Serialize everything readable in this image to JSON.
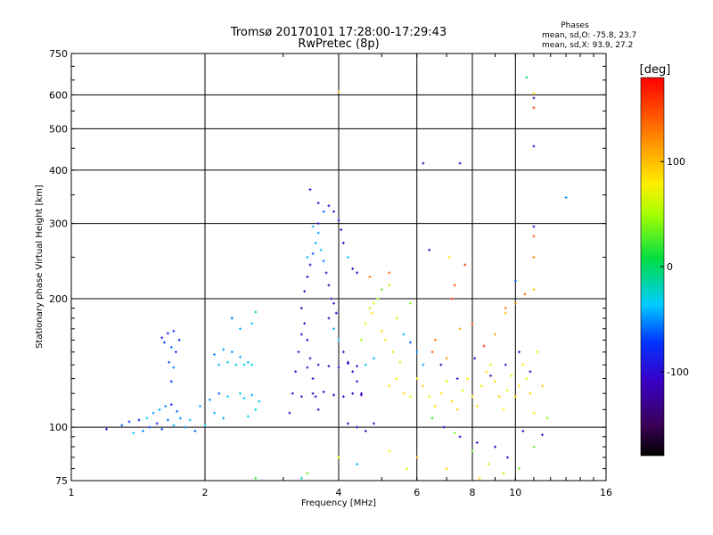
{
  "chart_data": {
    "type": "scatter",
    "title": "Tromsø 20170101 17:28:00-17:29:43",
    "subtitle": "RwPretec (8p)",
    "xlabel": "Frequency [MHz]",
    "ylabel": "Stationary phase Virtual Height [km]",
    "x_scale": "log",
    "y_scale": "log",
    "xlim": [
      1,
      16
    ],
    "ylim": [
      75,
      750
    ],
    "x_ticks": [
      1,
      2,
      4,
      6,
      8,
      10,
      16
    ],
    "x_tick_labels": [
      "1",
      "2",
      "4",
      "6",
      "8",
      "10",
      "16"
    ],
    "y_ticks": [
      75,
      100,
      200,
      300,
      400,
      500,
      600,
      750
    ],
    "y_tick_labels": [
      "75",
      "100",
      "200",
      "300",
      "400",
      "500",
      "600",
      "750"
    ],
    "grid": true,
    "legend": {
      "title": "Phases",
      "lines": [
        "mean, sd,O: -75.8, 23.7",
        "mean, sd,X:  93.9, 27.2"
      ],
      "position": "top-right"
    },
    "colorbar": {
      "label": "[deg]",
      "range": [
        -180,
        180
      ],
      "ticks": [
        100,
        0,
        -100
      ],
      "tick_labels": [
        "100",
        "0",
        "-100"
      ],
      "colormap": "rainbow (black - purple - blue - cyan - green - yellow - orange - red)"
    },
    "series": [
      {
        "points": [
          [
            1.2,
            99,
            -90
          ],
          [
            1.3,
            101,
            -60
          ],
          [
            1.35,
            103,
            -70
          ],
          [
            1.38,
            97,
            -40
          ],
          [
            1.42,
            104,
            -80
          ],
          [
            1.45,
            98,
            -55
          ],
          [
            1.48,
            105,
            -35
          ],
          [
            1.5,
            100,
            -65
          ],
          [
            1.53,
            108,
            -50
          ],
          [
            1.56,
            102,
            -80
          ],
          [
            1.58,
            110,
            -45
          ],
          [
            1.6,
            99,
            -70
          ],
          [
            1.63,
            112,
            -55
          ],
          [
            1.65,
            104,
            -60
          ],
          [
            1.68,
            113,
            -85
          ],
          [
            1.7,
            101,
            -45
          ],
          [
            1.73,
            109,
            -60
          ],
          [
            1.76,
            105,
            -50
          ],
          [
            1.6,
            162,
            -90
          ],
          [
            1.62,
            158,
            -70
          ],
          [
            1.65,
            166,
            -85
          ],
          [
            1.68,
            154,
            -60
          ],
          [
            1.7,
            168,
            -75
          ],
          [
            1.72,
            150,
            -95
          ],
          [
            1.75,
            160,
            -80
          ],
          [
            1.66,
            142,
            -65
          ],
          [
            1.68,
            128,
            -70
          ],
          [
            1.7,
            138,
            -55
          ],
          [
            1.8,
            100,
            -50
          ],
          [
            1.85,
            104,
            -40
          ],
          [
            1.9,
            98,
            -60
          ],
          [
            1.95,
            112,
            -45
          ],
          [
            2.0,
            101,
            -35
          ],
          [
            2.05,
            116,
            -50
          ],
          [
            2.1,
            108,
            -40
          ],
          [
            2.15,
            120,
            -60
          ],
          [
            2.2,
            105,
            -45
          ],
          [
            2.25,
            118,
            -35
          ],
          [
            2.1,
            148,
            -55
          ],
          [
            2.15,
            140,
            -40
          ],
          [
            2.2,
            152,
            -45
          ],
          [
            2.25,
            142,
            -35
          ],
          [
            2.3,
            150,
            -50
          ],
          [
            2.35,
            140,
            -30
          ],
          [
            2.4,
            146,
            -45
          ],
          [
            2.45,
            140,
            -35
          ],
          [
            2.5,
            142,
            -40
          ],
          [
            2.55,
            140,
            -30
          ],
          [
            2.4,
            120,
            -30
          ],
          [
            2.45,
            117,
            -40
          ],
          [
            2.5,
            106,
            -35
          ],
          [
            2.55,
            119,
            -45
          ],
          [
            2.6,
            110,
            -30
          ],
          [
            2.65,
            115,
            -35
          ],
          [
            2.3,
            180,
            -60
          ],
          [
            2.4,
            170,
            -40
          ],
          [
            2.6,
            186,
            -25
          ],
          [
            2.55,
            175,
            -35
          ],
          [
            3.1,
            108,
            -90
          ],
          [
            3.15,
            120,
            -100
          ],
          [
            3.2,
            135,
            -110
          ],
          [
            3.25,
            150,
            -95
          ],
          [
            3.3,
            165,
            -105
          ],
          [
            3.35,
            175,
            -100
          ],
          [
            3.4,
            160,
            -110
          ],
          [
            3.45,
            145,
            -120
          ],
          [
            3.5,
            130,
            -100
          ],
          [
            3.55,
            118,
            -95
          ],
          [
            3.6,
            110,
            -110
          ],
          [
            3.3,
            190,
            -120
          ],
          [
            3.35,
            208,
            -105
          ],
          [
            3.4,
            225,
            -110
          ],
          [
            3.45,
            240,
            -100
          ],
          [
            3.5,
            255,
            -60
          ],
          [
            3.55,
            270,
            -45
          ],
          [
            3.6,
            285,
            -50
          ],
          [
            3.65,
            260,
            -40
          ],
          [
            3.7,
            245,
            -55
          ],
          [
            3.75,
            230,
            -110
          ],
          [
            3.8,
            215,
            -120
          ],
          [
            3.85,
            200,
            -105
          ],
          [
            3.9,
            195,
            -100
          ],
          [
            3.95,
            185,
            -110
          ],
          [
            3.4,
            250,
            -40
          ],
          [
            3.5,
            295,
            -45
          ],
          [
            3.6,
            300,
            -90
          ],
          [
            3.7,
            320,
            -60
          ],
          [
            3.8,
            330,
            -100
          ],
          [
            3.9,
            320,
            -110
          ],
          [
            4.0,
            305,
            -105
          ],
          [
            3.45,
            360,
            -100
          ],
          [
            3.6,
            335,
            -110
          ],
          [
            4.05,
            290,
            -110
          ],
          [
            4.1,
            270,
            -100
          ],
          [
            4.2,
            250,
            -40
          ],
          [
            4.3,
            235,
            -110
          ],
          [
            4.4,
            230,
            -105
          ],
          [
            3.8,
            180,
            -100
          ],
          [
            3.9,
            170,
            -45
          ],
          [
            4.0,
            160,
            -40
          ],
          [
            4.1,
            150,
            -100
          ],
          [
            4.2,
            142,
            -110
          ],
          [
            4.3,
            135,
            -100
          ],
          [
            4.4,
            128,
            -105
          ],
          [
            4.5,
            120,
            -110
          ],
          [
            3.3,
            118,
            -105
          ],
          [
            3.5,
            120,
            -110
          ],
          [
            3.7,
            121,
            -100
          ],
          [
            3.9,
            119,
            -110
          ],
          [
            4.1,
            118,
            -105
          ],
          [
            4.3,
            120,
            -100
          ],
          [
            4.5,
            119,
            -110
          ],
          [
            3.4,
            138,
            -100
          ],
          [
            3.6,
            140,
            -105
          ],
          [
            3.8,
            139,
            -110
          ],
          [
            4.0,
            138,
            -100
          ],
          [
            4.2,
            141,
            -105
          ],
          [
            4.4,
            139,
            -110
          ],
          [
            4.6,
            140,
            -40
          ],
          [
            4.8,
            145,
            -45
          ],
          [
            4.4,
            100,
            -105
          ],
          [
            4.6,
            98,
            -110
          ],
          [
            4.8,
            102,
            -100
          ],
          [
            4.2,
            102,
            -110
          ],
          [
            4.7,
            190,
            60
          ],
          [
            4.75,
            185,
            80
          ],
          [
            4.8,
            195,
            70
          ],
          [
            4.6,
            175,
            65
          ],
          [
            4.5,
            160,
            50
          ],
          [
            4.9,
            200,
            45
          ],
          [
            5.0,
            210,
            30
          ],
          [
            5.2,
            215,
            55
          ],
          [
            5.0,
            168,
            90
          ],
          [
            5.1,
            160,
            75
          ],
          [
            5.3,
            150,
            85
          ],
          [
            5.5,
            142,
            70
          ],
          [
            5.2,
            125,
            90
          ],
          [
            5.4,
            130,
            80
          ],
          [
            5.6,
            120,
            85
          ],
          [
            5.8,
            118,
            75
          ],
          [
            5.6,
            165,
            -40
          ],
          [
            5.8,
            158,
            -60
          ],
          [
            6.0,
            150,
            -50
          ],
          [
            6.2,
            140,
            -45
          ],
          [
            5.4,
            180,
            60
          ],
          [
            5.8,
            195,
            40
          ],
          [
            6.0,
            130,
            80
          ],
          [
            6.2,
            125,
            90
          ],
          [
            6.4,
            118,
            70
          ],
          [
            6.6,
            112,
            85
          ],
          [
            6.8,
            120,
            80
          ],
          [
            7.0,
            128,
            75
          ],
          [
            7.2,
            115,
            90
          ],
          [
            7.4,
            110,
            95
          ],
          [
            7.6,
            122,
            70
          ],
          [
            7.8,
            130,
            80
          ],
          [
            8.0,
            118,
            85
          ],
          [
            8.2,
            112,
            90
          ],
          [
            8.4,
            125,
            75
          ],
          [
            8.6,
            135,
            80
          ],
          [
            8.8,
            140,
            70
          ],
          [
            9.0,
            128,
            85
          ],
          [
            9.2,
            118,
            90
          ],
          [
            9.4,
            110,
            80
          ],
          [
            9.6,
            122,
            75
          ],
          [
            9.8,
            132,
            85
          ],
          [
            10.0,
            118,
            90
          ],
          [
            10.2,
            125,
            80
          ],
          [
            10.4,
            140,
            85
          ],
          [
            10.6,
            130,
            70
          ],
          [
            10.8,
            120,
            90
          ],
          [
            11.0,
            108,
            85
          ],
          [
            11.2,
            150,
            80
          ],
          [
            11.5,
            125,
            95
          ],
          [
            6.5,
            150,
            140
          ],
          [
            6.6,
            160,
            130
          ],
          [
            7.0,
            145,
            120
          ],
          [
            7.5,
            170,
            110
          ],
          [
            8.0,
            175,
            150
          ],
          [
            8.5,
            155,
            160
          ],
          [
            9.0,
            165,
            110
          ],
          [
            9.5,
            185,
            100
          ],
          [
            10.0,
            195,
            120
          ],
          [
            10.5,
            205,
            135
          ],
          [
            11.0,
            210,
            100
          ],
          [
            7.2,
            200,
            160
          ],
          [
            6.8,
            140,
            -110
          ],
          [
            7.4,
            130,
            -100
          ],
          [
            8.1,
            145,
            -105
          ],
          [
            8.8,
            132,
            -110
          ],
          [
            9.5,
            140,
            -100
          ],
          [
            10.2,
            150,
            -110
          ],
          [
            10.8,
            135,
            -105
          ],
          [
            6.9,
            100,
            -110
          ],
          [
            7.5,
            95,
            -100
          ],
          [
            8.2,
            92,
            -105
          ],
          [
            9.0,
            90,
            -110
          ],
          [
            9.6,
            85,
            -100
          ],
          [
            10.4,
            98,
            -110
          ],
          [
            11.5,
            96,
            -105
          ],
          [
            6.5,
            105,
            20
          ],
          [
            7.3,
            97,
            40
          ],
          [
            8.0,
            88,
            30
          ],
          [
            8.7,
            82,
            60
          ],
          [
            9.4,
            78,
            50
          ],
          [
            10.2,
            80,
            40
          ],
          [
            11.0,
            90,
            30
          ],
          [
            11.8,
            105,
            45
          ],
          [
            6.0,
            85,
            100
          ],
          [
            7.0,
            80,
            90
          ],
          [
            8.3,
            76,
            85
          ],
          [
            5.2,
            88,
            80
          ],
          [
            5.7,
            80,
            70
          ],
          [
            3.4,
            78,
            30
          ],
          [
            3.3,
            76,
            -20
          ],
          [
            2.6,
            76,
            20
          ],
          [
            4.0,
            85,
            60
          ],
          [
            4.4,
            82,
            -40
          ],
          [
            6.2,
            415,
            -100
          ],
          [
            7.5,
            415,
            -110
          ],
          [
            11.0,
            455,
            -105
          ],
          [
            11.0,
            605,
            90
          ],
          [
            11.0,
            560,
            150
          ],
          [
            10.6,
            660,
            0
          ],
          [
            11.0,
            590,
            -110
          ],
          [
            13.0,
            345,
            -50
          ],
          [
            11.0,
            295,
            -100
          ],
          [
            11.0,
            280,
            140
          ],
          [
            4.0,
            610,
            100
          ],
          [
            11.0,
            250,
            120
          ],
          [
            10.0,
            220,
            -60
          ],
          [
            9.5,
            190,
            130
          ],
          [
            6.4,
            260,
            -110
          ],
          [
            7.1,
            250,
            80
          ],
          [
            7.3,
            215,
            150
          ],
          [
            7.7,
            240,
            160
          ],
          [
            5.2,
            230,
            140
          ],
          [
            4.7,
            225,
            130
          ]
        ]
      }
    ]
  }
}
